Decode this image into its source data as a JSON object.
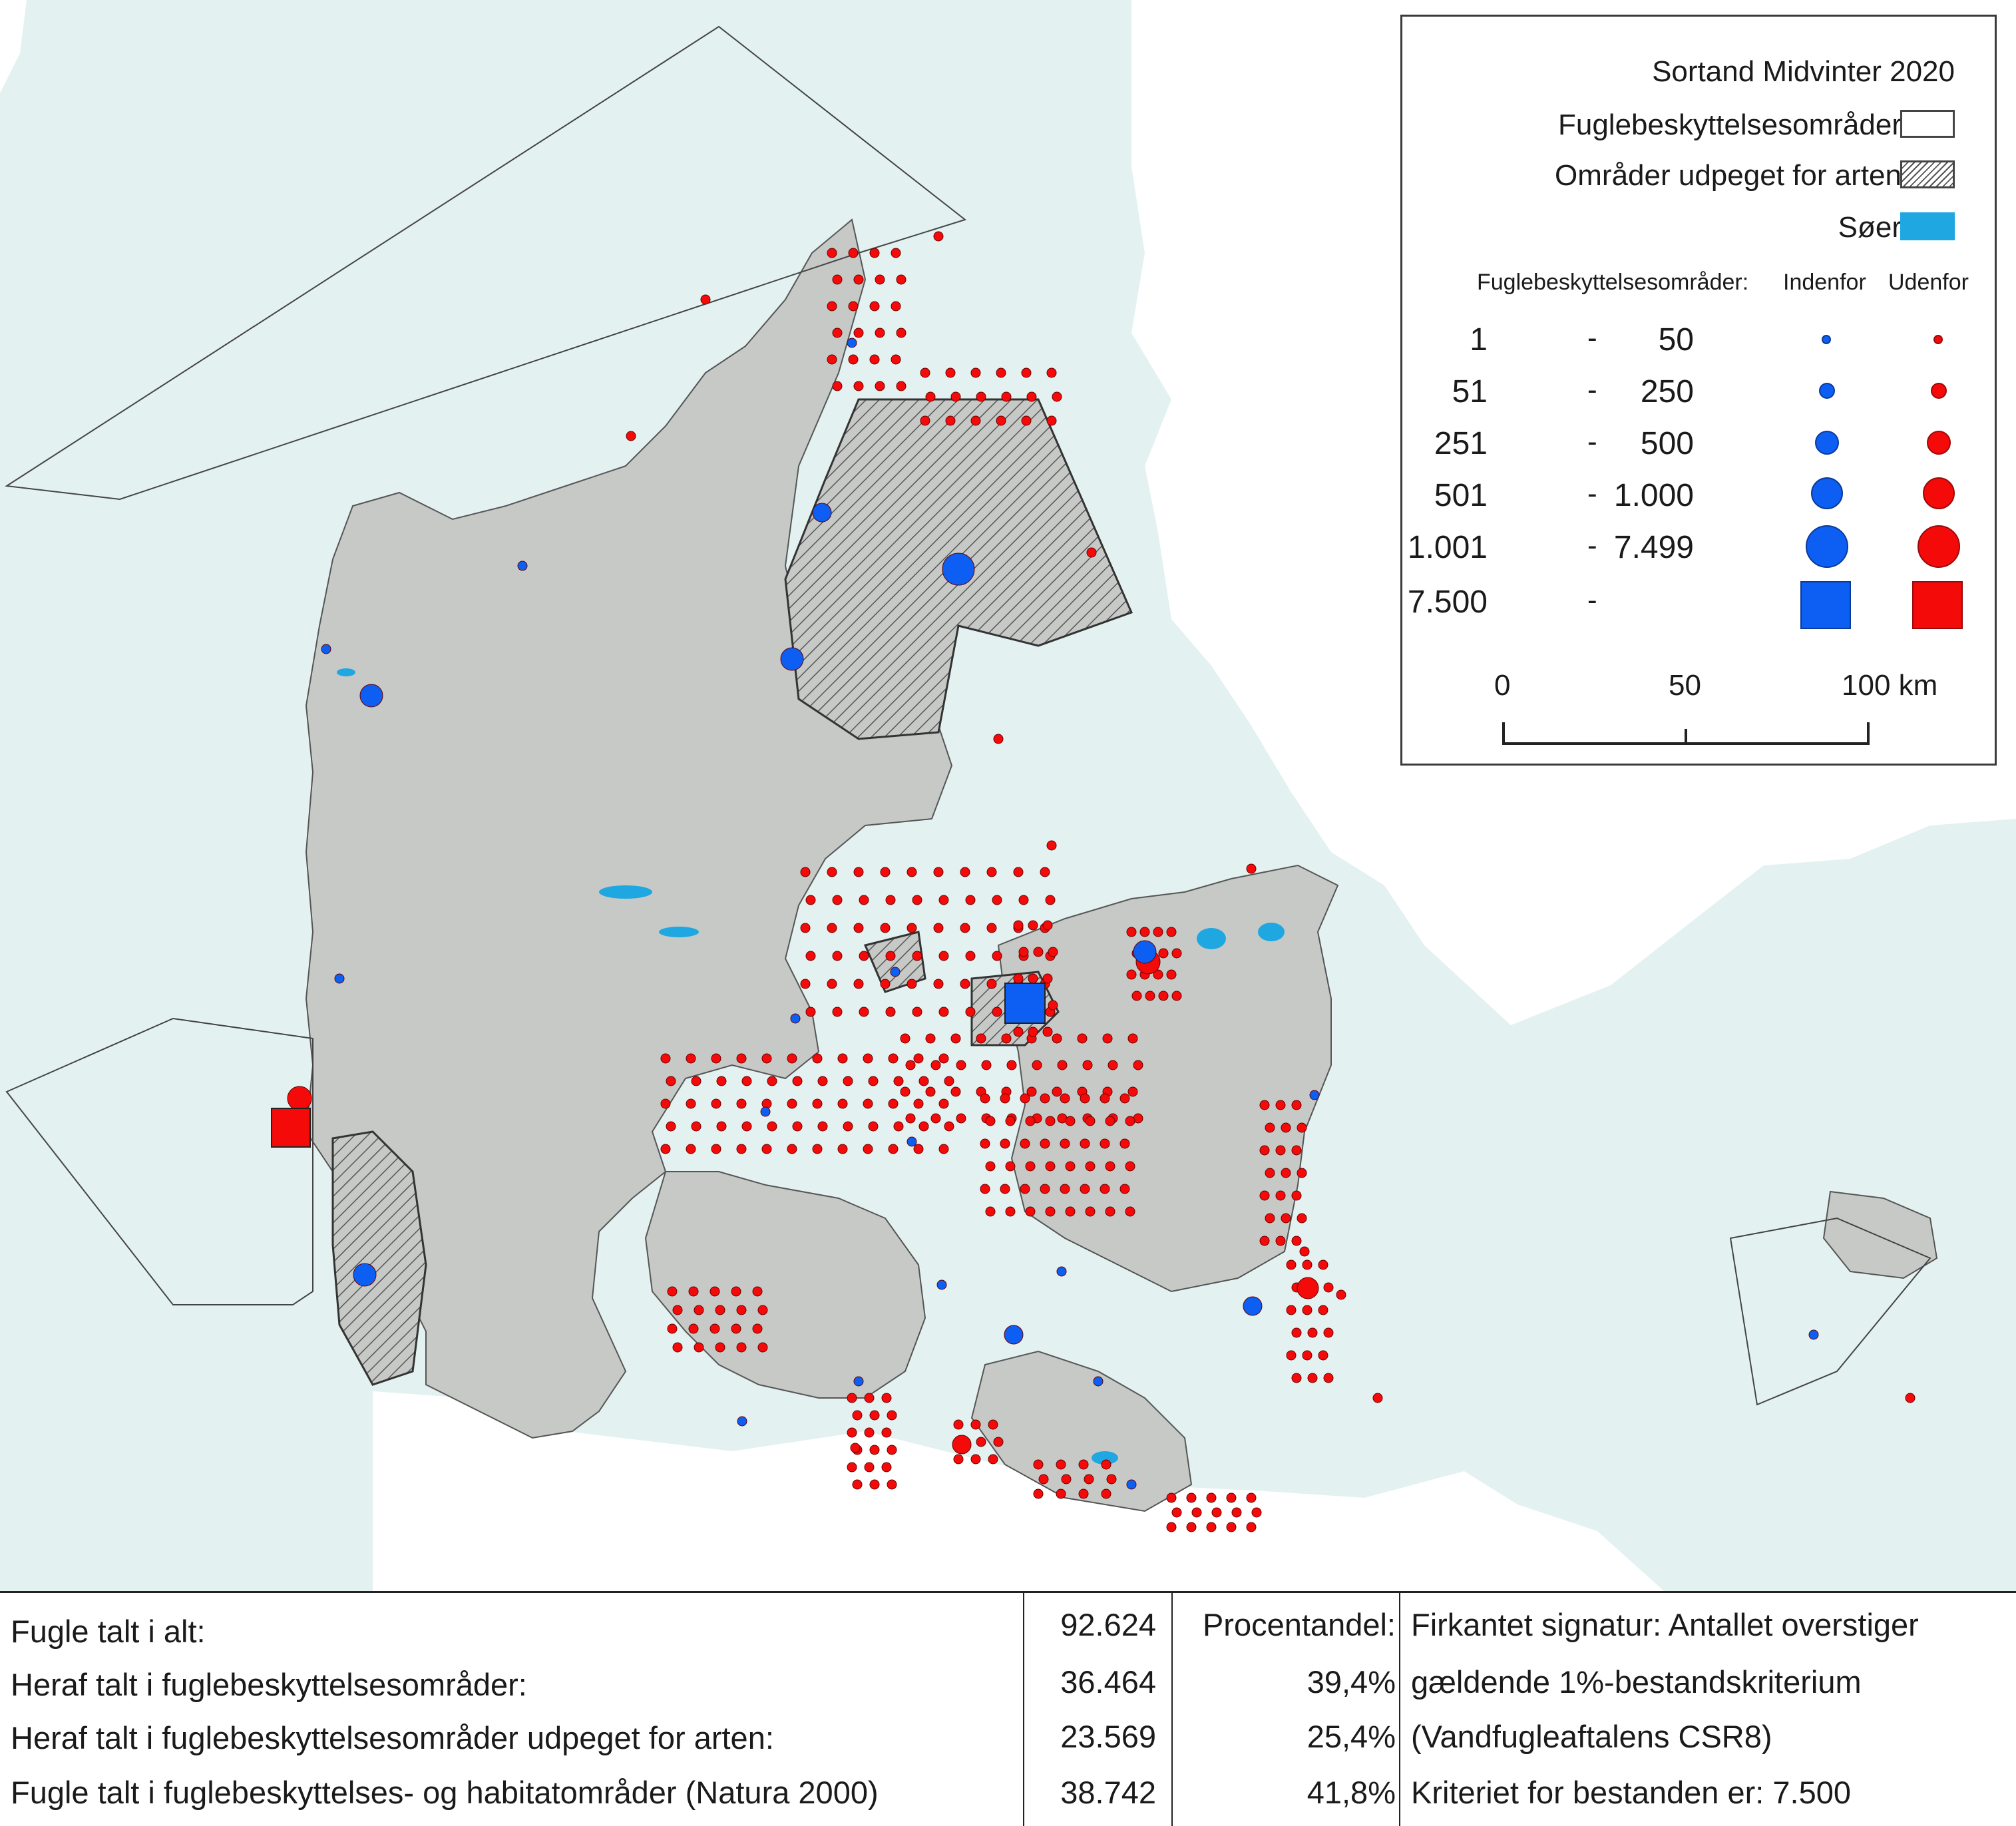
{
  "legend": {
    "title": "Sortand Midvinter 2020",
    "rows": [
      {
        "label": "Fuglebeskyttelsesområder",
        "swatch": "white-box"
      },
      {
        "label": "Områder udpeget for arten",
        "swatch": "hatched-box"
      },
      {
        "label": "Søer",
        "swatch": "lake-blue",
        "color": "#1ea7e1"
      }
    ],
    "size_header": "Fuglebeskyttelsesområder:",
    "col_inside": "Indenfor",
    "col_outside": "Udenfor",
    "classes": [
      {
        "from": "1",
        "to": "50"
      },
      {
        "from": "51",
        "to": "250"
      },
      {
        "from": "251",
        "to": "500"
      },
      {
        "from": "501",
        "to": "1.000"
      },
      {
        "from": "1.001",
        "to": "7.499"
      },
      {
        "from": "7.500",
        "to": ""
      }
    ],
    "dash": "-",
    "scale": {
      "l0": "0",
      "l50": "50",
      "l100": "100 km"
    },
    "colors": {
      "inside": "#0d5ef2",
      "outside": "#f50a0a",
      "land": "#c6c9c6",
      "sea": "#e4f1f1"
    }
  },
  "stats": {
    "rows": [
      {
        "label": "Fugle talt i alt:",
        "value": "92.624",
        "pct": "Procentandel:",
        "note": "Firkantet signatur: Antallet overstiger"
      },
      {
        "label": "Heraf talt i fuglebeskyttelsesområder:",
        "value": "36.464",
        "pct": "39,4%",
        "note": "gældende 1%-bestandskriterium"
      },
      {
        "label": "Heraf talt i fuglebeskyttelsesområder udpeget for arten:",
        "value": "23.569",
        "pct": "25,4%",
        "note": "(Vandfugleaftalens CSR8)"
      },
      {
        "label": "Fugle talt i fuglebeskyttelses- og habitatområder (Natura 2000)",
        "value": "38.742",
        "pct": "41,8%",
        "note": "Kriteriet for bestanden er: 7.500"
      }
    ]
  }
}
